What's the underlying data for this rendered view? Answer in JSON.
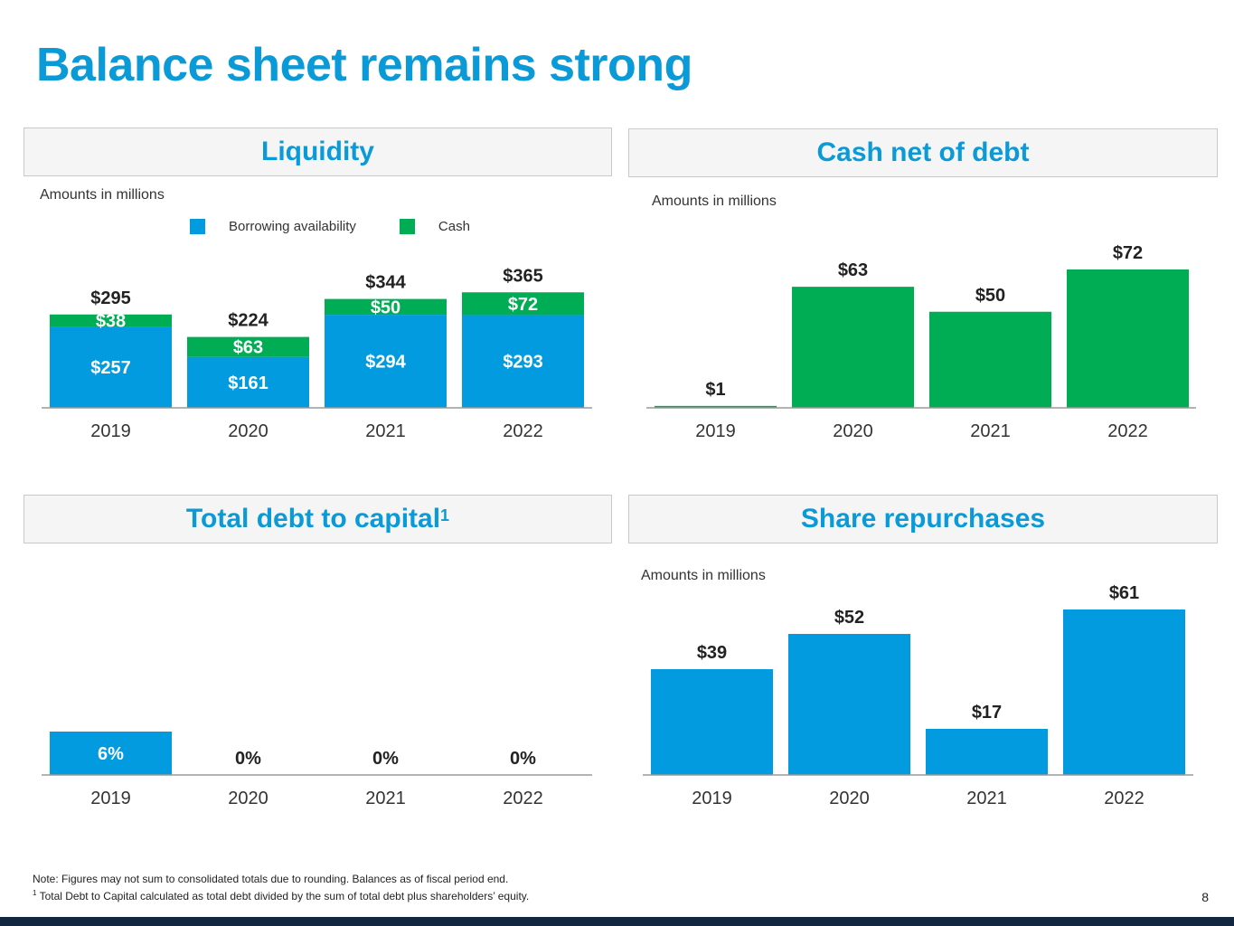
{
  "title": "Balance sheet remains strong",
  "colors": {
    "accent": "#0a9ad8",
    "blue_bar": "#039be0",
    "green_bar": "#00ad55",
    "footer": "#13263f"
  },
  "panels": {
    "liquidity": {
      "header": "Liquidity",
      "units": "Amounts in millions",
      "legend": [
        "Borrowing availability",
        "Cash"
      ]
    },
    "cash_net": {
      "header": "Cash net of debt",
      "units": "Amounts in millions"
    },
    "debt_capital": {
      "header": "Total debt to capital",
      "superscript": "1"
    },
    "repurchases": {
      "header": "Share repurchases",
      "units": "Amounts in millions"
    }
  },
  "chart_data": [
    {
      "id": "liquidity",
      "type": "bar",
      "stacked": true,
      "categories": [
        "2019",
        "2020",
        "2021",
        "2022"
      ],
      "series": [
        {
          "name": "Borrowing availability",
          "values": [
            257,
            161,
            294,
            293
          ],
          "labels": [
            "$257",
            "$161",
            "$294",
            "$293"
          ]
        },
        {
          "name": "Cash",
          "values": [
            38,
            63,
            50,
            72
          ],
          "labels": [
            "$38",
            "$63",
            "$50",
            "$72"
          ]
        }
      ],
      "totals": [
        "$295",
        "$224",
        "$344",
        "$365"
      ],
      "ylim": [
        0,
        400
      ]
    },
    {
      "id": "cash_net",
      "type": "bar",
      "categories": [
        "2019",
        "2020",
        "2021",
        "2022"
      ],
      "values": [
        1,
        63,
        50,
        72
      ],
      "labels": [
        "$1",
        "$63",
        "$50",
        "$72"
      ],
      "ylim": [
        0,
        80
      ]
    },
    {
      "id": "debt_capital",
      "type": "bar",
      "categories": [
        "2019",
        "2020",
        "2021",
        "2022"
      ],
      "values": [
        6,
        0,
        0,
        0
      ],
      "labels": [
        "6%",
        "0%",
        "0%",
        "0%"
      ],
      "ylim": [
        0,
        25
      ]
    },
    {
      "id": "repurchases",
      "type": "bar",
      "categories": [
        "2019",
        "2020",
        "2021",
        "2022"
      ],
      "values": [
        39,
        52,
        17,
        61
      ],
      "labels": [
        "$39",
        "$52",
        "$17",
        "$61"
      ],
      "ylim": [
        0,
        70
      ]
    }
  ],
  "notes": {
    "line1": "Note: Figures may not sum to consolidated totals due to rounding. Balances as of fiscal period end.",
    "footnote_mark": "1",
    "line2": " Total Debt to Capital calculated as total debt divided by the sum of total debt plus shareholders’ equity."
  },
  "page_number": "8"
}
